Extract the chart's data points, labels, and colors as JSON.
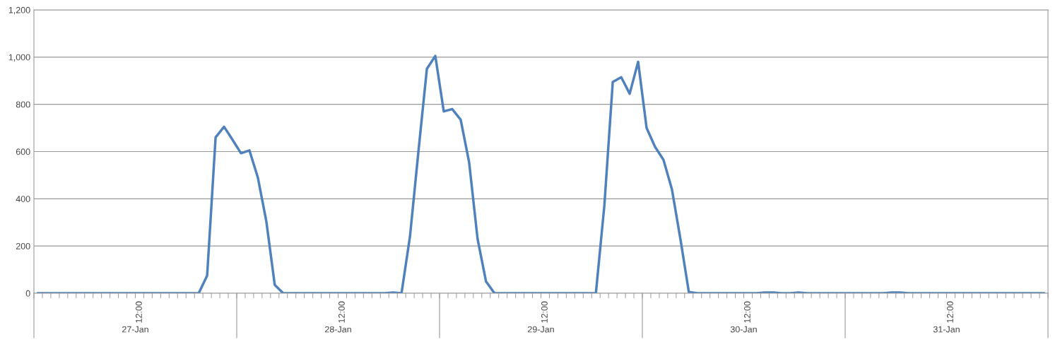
{
  "chart_data": {
    "type": "line",
    "categories": [
      null,
      null,
      null,
      null,
      null,
      null,
      null,
      null,
      null,
      null,
      null,
      null,
      "12:00",
      null,
      null,
      null,
      null,
      null,
      null,
      null,
      null,
      null,
      null,
      null,
      null,
      null,
      null,
      null,
      null,
      null,
      null,
      null,
      null,
      null,
      null,
      null,
      "12:00",
      null,
      null,
      null,
      null,
      null,
      null,
      null,
      null,
      null,
      null,
      null,
      null,
      null,
      null,
      null,
      null,
      null,
      null,
      null,
      null,
      null,
      null,
      null,
      "12:00",
      null,
      null,
      null,
      null,
      null,
      null,
      null,
      null,
      null,
      null,
      null,
      null,
      null,
      null,
      null,
      null,
      null,
      null,
      null,
      null,
      null,
      null,
      null,
      "12:00",
      null,
      null,
      null,
      null,
      null,
      null,
      null,
      null,
      null,
      null,
      null,
      null,
      null,
      null,
      null,
      null,
      null,
      null,
      null,
      null,
      null,
      null,
      null,
      "12:00",
      null,
      null,
      null,
      null,
      null,
      null,
      null,
      null,
      null,
      null,
      null
    ],
    "series": [
      {
        "color": "#4f81bd",
        "values": [
          0,
          0,
          0,
          0,
          0,
          0,
          0,
          0,
          0,
          0,
          0,
          0,
          0,
          0,
          0,
          0,
          0,
          0,
          0,
          0,
          75,
          660,
          705,
          650,
          593,
          605,
          490,
          305,
          35,
          0,
          0,
          0,
          0,
          0,
          0,
          0,
          0,
          0,
          0,
          0,
          0,
          0,
          3,
          0,
          240,
          600,
          950,
          1005,
          770,
          780,
          735,
          555,
          230,
          50,
          0,
          0,
          0,
          0,
          0,
          0,
          0,
          0,
          0,
          0,
          0,
          0,
          0,
          370,
          895,
          915,
          845,
          980,
          700,
          620,
          565,
          440,
          230,
          5,
          0,
          0,
          0,
          0,
          0,
          0,
          0,
          0,
          3,
          3,
          0,
          0,
          3,
          0,
          0,
          0,
          0,
          0,
          0,
          0,
          0,
          0,
          0,
          3,
          3,
          0,
          0,
          0,
          0,
          0,
          0,
          0,
          0,
          0,
          0,
          0,
          0,
          0,
          0,
          0,
          0,
          0
        ]
      }
    ],
    "annotations": [
      "27-Jan",
      "28-Jan",
      "29-Jan",
      "30-Jan",
      "31-Jan"
    ],
    "ylim": [
      0,
      1200
    ],
    "yticks": [
      0,
      200,
      400,
      600,
      800,
      {
        "value": 1000,
        "label": "1,000"
      },
      {
        "value": 1200,
        "label": "1,200"
      }
    ],
    "grid": "y"
  }
}
